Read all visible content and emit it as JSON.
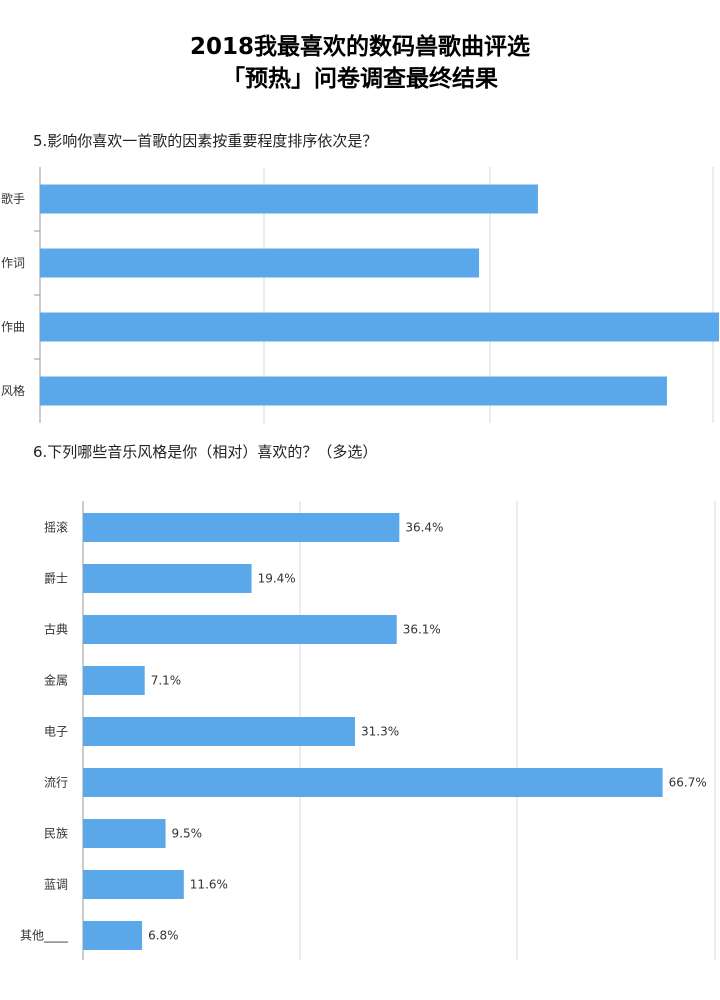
{
  "header": {
    "title_line1": "2018我最喜欢的数码兽歌曲评选",
    "title_line2": "「预热」问卷调查最终结果"
  },
  "colors": {
    "bar": "#5aa8ea",
    "grid": "#d9d9d9",
    "axis": "#999999"
  },
  "chart_data": [
    {
      "type": "bar",
      "orientation": "horizontal",
      "question": "5.影响你喜欢一首歌的因素按重要程度排序依次是？",
      "categories": [
        "歌手",
        "作词",
        "作曲",
        "风格"
      ],
      "values": [
        2.2,
        1.94,
        3.0,
        2.77
      ],
      "xlim": [
        0,
        3.0
      ],
      "grid": true,
      "data_labels": []
    },
    {
      "type": "bar",
      "orientation": "horizontal",
      "question": "6.下列哪些音乐风格是你（相对）喜欢的？（多选）",
      "categories": [
        "摇滚",
        "爵士",
        "古典",
        "金属",
        "电子",
        "流行",
        "民族",
        "蓝调",
        "其他____"
      ],
      "values": [
        36.4,
        19.4,
        36.1,
        7.1,
        31.3,
        66.7,
        9.5,
        11.6,
        6.8
      ],
      "data_labels": [
        "36.4%",
        "19.4%",
        "36.1%",
        "7.1%",
        "31.3%",
        "66.7%",
        "9.5%",
        "11.6%",
        "6.8%"
      ],
      "xlim": [
        0,
        80
      ],
      "unit": "%",
      "grid": true
    }
  ]
}
